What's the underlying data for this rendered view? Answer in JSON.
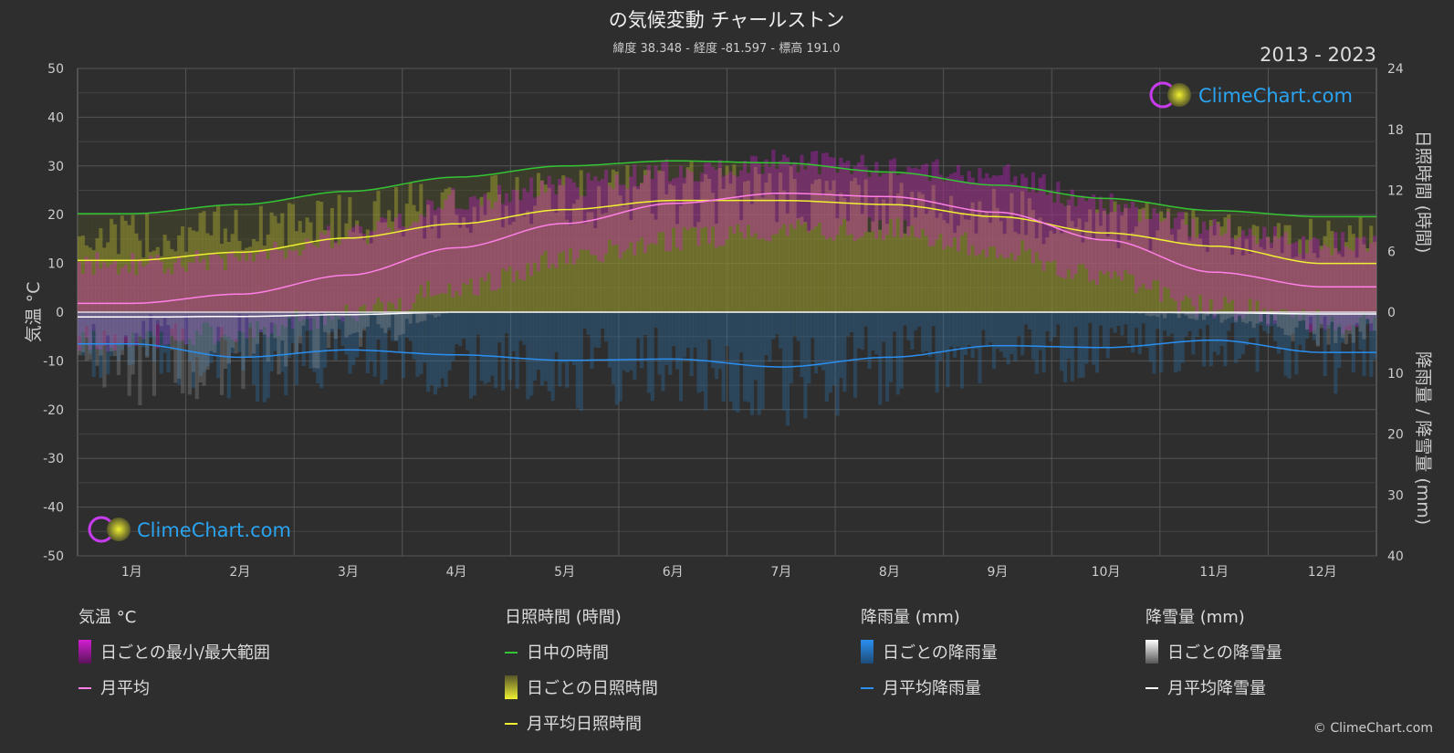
{
  "title": "の気候変動 チャールストン",
  "subtitle": "緯度 38.348 - 経度 -81.597 - 標高 191.0",
  "year_range": "2013 - 2023",
  "logo_text": "ClimeChart.com",
  "copyright": "© ClimeChart.com",
  "colors": {
    "background": "#2e2e2e",
    "temp_range": "#d21ed2",
    "temp_avg": "#ff7fe6",
    "daylight": "#34c534",
    "sunshine_bar": "#c8c832",
    "sunshine_avg": "#f0f032",
    "rain_bar": "#2a6fa8",
    "rain_avg": "#2a8ff0",
    "snow_bar": "#9a9a9a",
    "snow_avg": "#ffffff",
    "logo_text": "#2aa3f0"
  },
  "axes": {
    "left_label": "気温 °C",
    "right_top_label": "日照時間 (時間)",
    "right_bottom_label": "降雨量 / 降雪量 (mm)",
    "left_ticks": [
      "50",
      "40",
      "30",
      "20",
      "10",
      "0",
      "-10",
      "-20",
      "-30",
      "-40",
      "-50"
    ],
    "right_top_ticks": [
      "24",
      "18",
      "12",
      "6",
      "0"
    ],
    "right_bottom_ticks": [
      "10",
      "20",
      "30",
      "40"
    ]
  },
  "legend": {
    "temp": {
      "title": "気温 °C",
      "items": [
        {
          "label": "日ごとの最小/最大範囲",
          "icon": "range-swatch"
        },
        {
          "label": "月平均",
          "icon": "line"
        }
      ]
    },
    "sun": {
      "title": "日照時間 (時間)",
      "items": [
        {
          "label": "日中の時間",
          "icon": "line"
        },
        {
          "label": "日ごとの日照時間",
          "icon": "bar-swatch"
        },
        {
          "label": "月平均日照時間",
          "icon": "line"
        }
      ]
    },
    "rain": {
      "title": "降雨量 (mm)",
      "items": [
        {
          "label": "日ごとの降雨量",
          "icon": "bar-swatch"
        },
        {
          "label": "月平均降雨量",
          "icon": "line"
        }
      ]
    },
    "snow": {
      "title": "降雪量 (mm)",
      "items": [
        {
          "label": "日ごとの降雪量",
          "icon": "bar-swatch"
        },
        {
          "label": "月平均降雪量",
          "icon": "line"
        }
      ]
    }
  },
  "chart_data": {
    "type": "line",
    "categories": [
      "1月",
      "2月",
      "3月",
      "4月",
      "5月",
      "6月",
      "7月",
      "8月",
      "9月",
      "10月",
      "11月",
      "12月"
    ],
    "y_left": {
      "unit": "°C",
      "range": [
        -50,
        50
      ]
    },
    "y_right_top": {
      "unit": "時間",
      "range": [
        0,
        24
      ]
    },
    "y_right_bottom": {
      "unit": "mm",
      "range": [
        0,
        40
      ]
    },
    "grid": true,
    "series": [
      {
        "name": "月平均",
        "axis": "temperature",
        "values": [
          1.8,
          3.7,
          7.6,
          13.2,
          18.2,
          22.3,
          24.4,
          23.7,
          20.5,
          14.8,
          8.2,
          5.2
        ]
      },
      {
        "name": "日ごとの最小/最大範囲 (最大)",
        "axis": "temperature",
        "values": [
          10,
          11,
          16,
          23,
          26,
          29,
          31,
          30,
          28,
          22,
          17,
          14
        ]
      },
      {
        "name": "日ごとの最小/最大範囲 (最小)",
        "axis": "temperature",
        "values": [
          -6,
          -4,
          0,
          5,
          11,
          15,
          17,
          17,
          13,
          7,
          1,
          -2
        ]
      },
      {
        "name": "日中の時間",
        "axis": "sunshine",
        "values": [
          9.7,
          10.6,
          11.9,
          13.3,
          14.4,
          14.9,
          14.7,
          13.8,
          12.5,
          11.2,
          10.0,
          9.4
        ]
      },
      {
        "name": "月平均日照時間",
        "axis": "sunshine",
        "values": [
          5.1,
          5.9,
          7.3,
          8.7,
          10.1,
          11.0,
          11.0,
          10.6,
          9.4,
          7.8,
          6.5,
          4.8
        ]
      },
      {
        "name": "月平均降雨量",
        "axis": "precipitation",
        "values": [
          5.2,
          7.4,
          6.2,
          7.0,
          7.9,
          7.7,
          9.0,
          7.4,
          5.5,
          5.8,
          4.6,
          6.6
        ]
      },
      {
        "name": "月平均降雪量",
        "axis": "precipitation",
        "values": [
          0.8,
          0.7,
          0.4,
          0.0,
          0.0,
          0.0,
          0.0,
          0.0,
          0.0,
          0.0,
          0.1,
          0.3
        ]
      }
    ]
  }
}
